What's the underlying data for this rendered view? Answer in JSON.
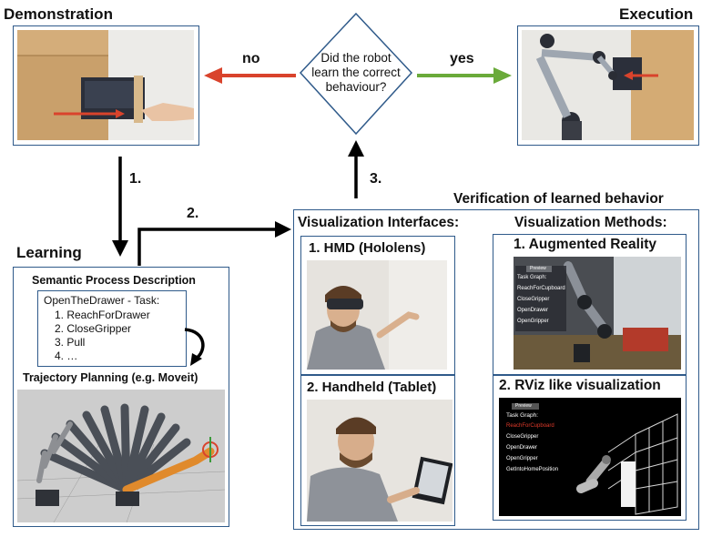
{
  "demonstration": {
    "title": "Demonstration"
  },
  "execution": {
    "title": "Execution"
  },
  "decision": {
    "line1": "Did the robot",
    "line2": "learn the correct",
    "line3": "behaviour?",
    "no_label": "no",
    "yes_label": "yes"
  },
  "steps": {
    "s1": "1.",
    "s2": "2.",
    "s3": "3."
  },
  "verification_title": "Verification of learned behavior",
  "learning": {
    "title": "Learning",
    "spd_title": "Semantic Process Description",
    "task_header": "OpenTheDrawer - Task:",
    "tasks": [
      "1. ReachForDrawer",
      "2. CloseGripper",
      "3. Pull",
      "4. …"
    ],
    "trajectory_title": "Trajectory Planning (e.g. Moveit)"
  },
  "interfaces": {
    "title": "Visualization Interfaces:",
    "hmd": "1. HMD (Hololens)",
    "handheld": "2. Handheld (Tablet)"
  },
  "methods": {
    "title": "Visualization Methods:",
    "ar": "1. Augmented Reality",
    "rviz": "2. RViz like visualization"
  },
  "ar_panel": {
    "header": "Preview",
    "items": [
      "Task Graph:",
      "ReachForCupboard",
      "CloseGripper",
      "OpenDrawer",
      "OpenGripper"
    ]
  },
  "rviz_panel": {
    "header": "Preview",
    "title": "Task Graph:",
    "items": [
      "ReachForCupboard",
      "CloseGripper",
      "OpenDrawer",
      "OpenGripper",
      "GetIntoHomePosition"
    ]
  },
  "colors": {
    "box_border": "#2f5a8a",
    "no_arrow": "#d9432c",
    "yes_arrow": "#6aaa3a",
    "highlight": "#e03a2a"
  }
}
